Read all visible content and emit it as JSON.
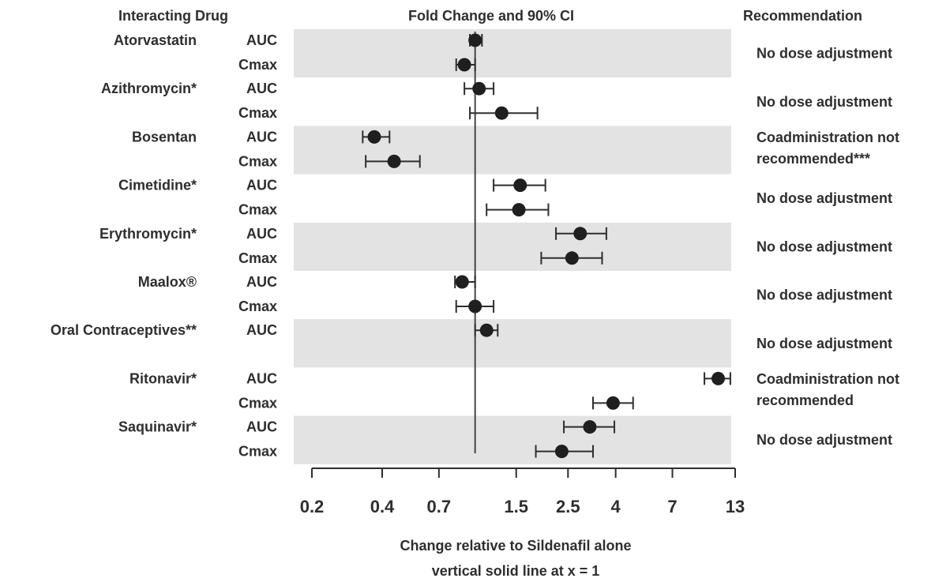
{
  "headers": {
    "drug": "Interacting Drug",
    "fold": "Fold Change and 90% CI",
    "rec": "Recommendation"
  },
  "xaxis": {
    "label": "Change relative to Sildenafil alone",
    "note": "vertical solid line at x = 1"
  },
  "chart_data": {
    "type": "forest",
    "title": "Fold Change and 90% CI",
    "xlabel": "Change relative to Sildenafil alone",
    "x_scale": "log",
    "xlim": [
      0.2,
      13
    ],
    "reference_line": 1,
    "ticks": [
      {
        "value": 0.2,
        "label": "0.2"
      },
      {
        "value": 0.4,
        "label": "0.4"
      },
      {
        "value": 0.7,
        "label": "0.7"
      },
      {
        "value": 1.5,
        "label": "1.5"
      },
      {
        "value": 2.5,
        "label": "2.5"
      },
      {
        "value": 4,
        "label": "4"
      },
      {
        "value": 7,
        "label": "7"
      },
      {
        "value": 13,
        "label": "13"
      }
    ],
    "groups": [
      {
        "drug": "Atorvastatin",
        "recommendation": [
          "No dose adjustment"
        ],
        "shaded": true,
        "rows": [
          {
            "param": "AUC",
            "estimate": 1.0,
            "lower": 0.95,
            "upper": 1.07
          },
          {
            "param": "Cmax",
            "estimate": 0.9,
            "lower": 0.83,
            "upper": 1.0
          }
        ]
      },
      {
        "drug": "Azithromycin*",
        "recommendation": [
          "No dose adjustment"
        ],
        "shaded": false,
        "rows": [
          {
            "param": "AUC",
            "estimate": 1.04,
            "lower": 0.9,
            "upper": 1.2
          },
          {
            "param": "Cmax",
            "estimate": 1.3,
            "lower": 0.95,
            "upper": 1.85
          }
        ]
      },
      {
        "drug": "Bosentan",
        "recommendation": [
          "Coadministration not",
          "recommended***"
        ],
        "shaded": true,
        "rows": [
          {
            "param": "AUC",
            "estimate": 0.37,
            "lower": 0.33,
            "upper": 0.43
          },
          {
            "param": "Cmax",
            "estimate": 0.45,
            "lower": 0.34,
            "upper": 0.58
          }
        ]
      },
      {
        "drug": "Cimetidine*",
        "recommendation": [
          "No dose adjustment"
        ],
        "shaded": false,
        "rows": [
          {
            "param": "AUC",
            "estimate": 1.56,
            "lower": 1.2,
            "upper": 2.0
          },
          {
            "param": "Cmax",
            "estimate": 1.54,
            "lower": 1.12,
            "upper": 2.06
          }
        ]
      },
      {
        "drug": "Erythromycin*",
        "recommendation": [
          "No dose adjustment"
        ],
        "shaded": true,
        "rows": [
          {
            "param": "AUC",
            "estimate": 2.82,
            "lower": 2.22,
            "upper": 3.65
          },
          {
            "param": "Cmax",
            "estimate": 2.6,
            "lower": 1.92,
            "upper": 3.5
          }
        ]
      },
      {
        "drug": "Maalox®",
        "recommendation": [
          "No dose adjustment"
        ],
        "shaded": false,
        "rows": [
          {
            "param": "AUC",
            "estimate": 0.88,
            "lower": 0.82,
            "upper": 1.0
          },
          {
            "param": "Cmax",
            "estimate": 1.0,
            "lower": 0.83,
            "upper": 1.2
          }
        ]
      },
      {
        "drug": "Oral Contraceptives**",
        "recommendation": [
          "No dose adjustment"
        ],
        "shaded": true,
        "rows": [
          {
            "param": "AUC",
            "estimate": 1.12,
            "lower": 1.0,
            "upper": 1.25
          }
        ]
      },
      {
        "drug": "Ritonavir*",
        "recommendation": [
          "Coadministration not",
          "recommended"
        ],
        "shaded": false,
        "rows": [
          {
            "param": "AUC",
            "estimate": 11.0,
            "lower": 9.6,
            "upper": 12.4
          },
          {
            "param": "Cmax",
            "estimate": 3.9,
            "lower": 3.2,
            "upper": 4.75
          }
        ]
      },
      {
        "drug": "Saquinavir*",
        "recommendation": [
          "No dose adjustment"
        ],
        "shaded": true,
        "rows": [
          {
            "param": "AUC",
            "estimate": 3.1,
            "lower": 2.4,
            "upper": 3.95
          },
          {
            "param": "Cmax",
            "estimate": 2.35,
            "lower": 1.82,
            "upper": 3.2
          }
        ]
      }
    ]
  }
}
